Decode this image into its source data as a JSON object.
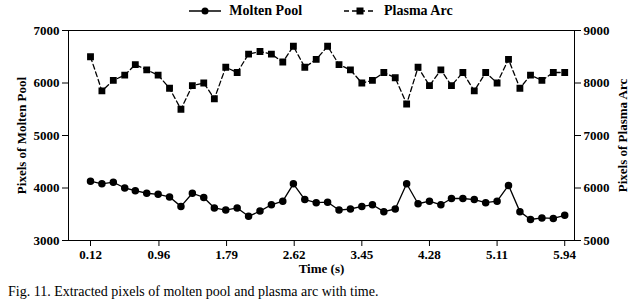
{
  "chart_data": {
    "type": "line",
    "caption": "Fig. 11. Extracted pixels of molten pool and plasma arc with time.",
    "x_label": "Time (s)",
    "y_label": "Pixels of Molten Pool",
    "y2_label": "Pixels of Plasma Arc",
    "x": [
      0.12,
      0.26,
      0.4,
      0.54,
      0.67,
      0.81,
      0.95,
      1.09,
      1.23,
      1.37,
      1.51,
      1.64,
      1.78,
      1.92,
      2.06,
      2.2,
      2.34,
      2.48,
      2.61,
      2.75,
      2.89,
      3.03,
      3.17,
      3.31,
      3.45,
      3.58,
      3.72,
      3.86,
      4.0,
      4.14,
      4.28,
      4.42,
      4.55,
      4.69,
      4.83,
      4.97,
      5.11,
      5.25,
      5.39,
      5.52,
      5.66,
      5.8,
      5.94
    ],
    "series": [
      {
        "name": "Molten Pool",
        "color": "#000000",
        "marker": "circle",
        "line_style": "solid",
        "values": [
          4130,
          4080,
          4110,
          4000,
          3950,
          3900,
          3880,
          3830,
          3650,
          3900,
          3820,
          3620,
          3580,
          3620,
          3460,
          3560,
          3680,
          3750,
          4080,
          3780,
          3720,
          3730,
          3580,
          3600,
          3650,
          3680,
          3550,
          3600,
          4080,
          3700,
          3750,
          3680,
          3800,
          3800,
          3780,
          3720,
          3750,
          4050,
          3550,
          3400,
          3430,
          3420,
          3480
        ]
      },
      {
        "name": "Plasma Arc",
        "color": "#000000",
        "marker": "square",
        "line_style": "dashed",
        "axis": "y2",
        "values": [
          8500,
          7850,
          8050,
          8150,
          8350,
          8250,
          8150,
          7900,
          7500,
          7950,
          8000,
          7700,
          8300,
          8200,
          8550,
          8600,
          8550,
          8400,
          8700,
          8300,
          8450,
          8700,
          8350,
          8250,
          8000,
          8050,
          8200,
          8100,
          7600,
          8300,
          7950,
          8250,
          7950,
          8200,
          7850,
          8200,
          8000,
          8450,
          7900,
          8150,
          8050,
          8200,
          8200
        ]
      }
    ],
    "xlim": [
      -0.15,
      6.06
    ],
    "xticks": [
      0.12,
      0.96,
      1.79,
      2.62,
      3.45,
      4.28,
      5.11,
      5.94
    ],
    "ylim": [
      3000,
      7000
    ],
    "yticks": [
      3000,
      4000,
      5000,
      6000,
      7000
    ],
    "y2lim": [
      5000,
      9000
    ],
    "y2ticks": [
      5000,
      6000,
      7000,
      8000,
      9000
    ],
    "legend": "top"
  }
}
